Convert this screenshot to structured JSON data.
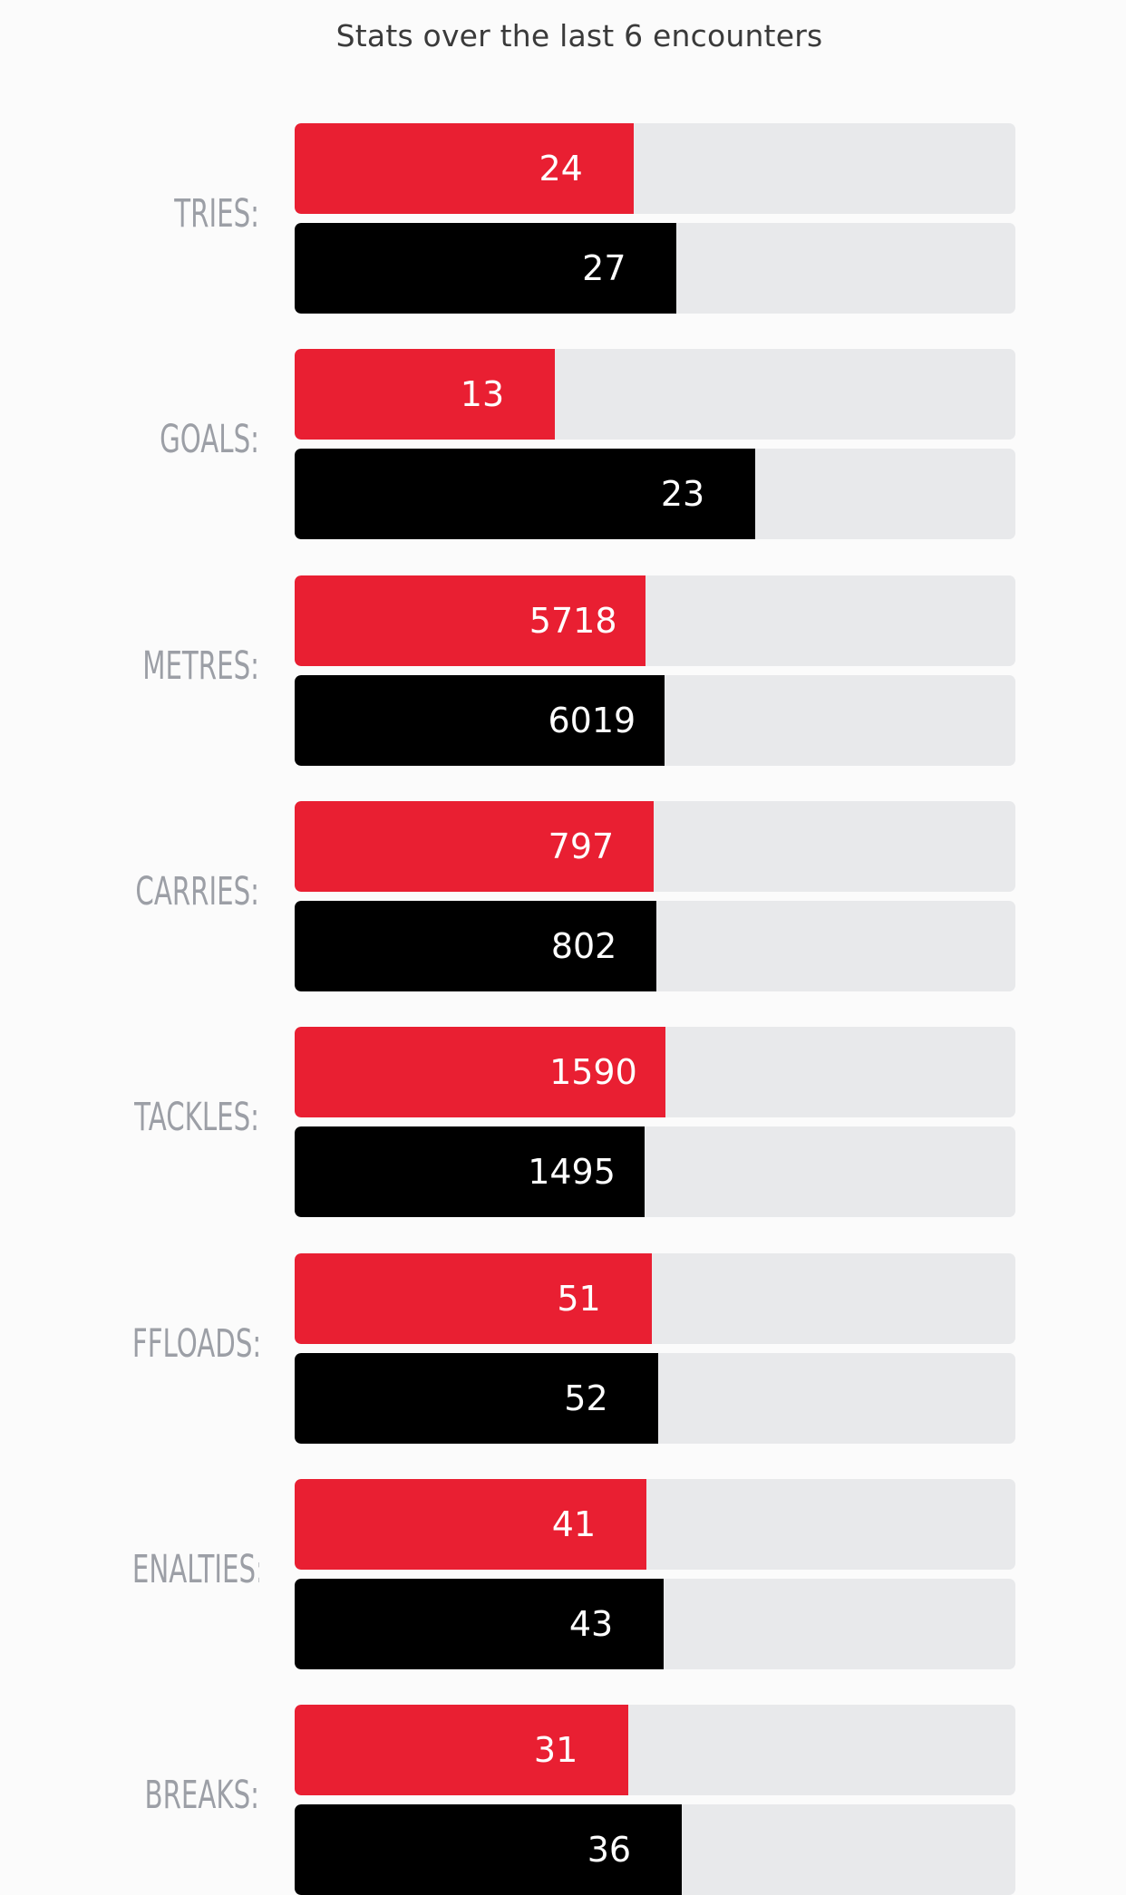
{
  "header": {
    "title": "Stats over the last 6 encounters"
  },
  "colors": {
    "home": "#e91f32",
    "away": "#000000",
    "track": "#e8e9eb"
  },
  "stats": [
    {
      "label": "TRIES:",
      "home": "24",
      "away": "27",
      "home_pct": 47.0,
      "away_pct": 53.0
    },
    {
      "label": "GOALS:",
      "home": "13",
      "away": "23",
      "home_pct": 36.1,
      "away_pct": 63.9
    },
    {
      "label": "METRES:",
      "home": "5718",
      "away": "6019",
      "home_pct": 48.7,
      "away_pct": 51.3
    },
    {
      "label": "CARRIES:",
      "home": "797",
      "away": "802",
      "home_pct": 49.8,
      "away_pct": 50.2
    },
    {
      "label": "TACKLES:",
      "home": "1590",
      "away": "1495",
      "home_pct": 51.5,
      "away_pct": 48.5
    },
    {
      "label": "FFLOADS:",
      "home": "51",
      "away": "52",
      "home_pct": 49.5,
      "away_pct": 50.5
    },
    {
      "label": "ENALTIES:",
      "home": "41",
      "away": "43",
      "home_pct": 48.8,
      "away_pct": 51.2
    },
    {
      "label": "BREAKS:",
      "home": "31",
      "away": "36",
      "home_pct": 46.3,
      "away_pct": 53.7
    }
  ]
}
